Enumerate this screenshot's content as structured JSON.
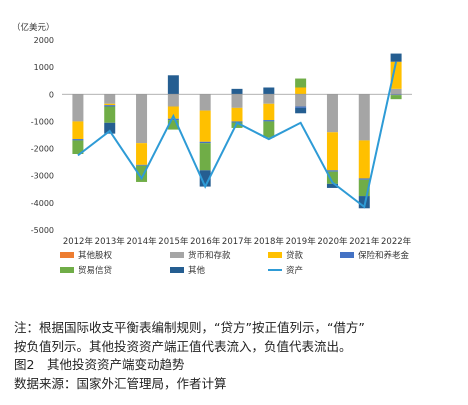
{
  "chart_data": {
    "type": "bar",
    "unit_label": "（亿美元）",
    "categories": [
      "2012年",
      "2013年",
      "2014年",
      "2015年",
      "2016年",
      "2017年",
      "2018年",
      "2019年",
      "2020年",
      "2021年",
      "2022年"
    ],
    "ylim": [
      -5000,
      2000
    ],
    "yticks": [
      2000,
      1000,
      0,
      -1000,
      -2000,
      -3000,
      -4000,
      -5000
    ],
    "stacked": true,
    "series": [
      {
        "name": "其他股权",
        "color": "#ED7D31",
        "values": [
          0,
          0,
          0,
          0,
          0,
          0,
          0,
          0,
          0,
          0,
          0
        ]
      },
      {
        "name": "货币和存款",
        "color": "#A5A5A5",
        "values": [
          -1000,
          -350,
          -1800,
          -450,
          -600,
          -500,
          -350,
          -450,
          -1400,
          -1700,
          200
        ]
      },
      {
        "name": "贷款",
        "color": "#FFC000",
        "values": [
          -650,
          -50,
          -800,
          -450,
          -1150,
          -500,
          -600,
          250,
          -1400,
          -1400,
          1000
        ]
      },
      {
        "name": "保险和养老金",
        "color": "#4472C4",
        "values": [
          -50,
          -50,
          -30,
          -50,
          -50,
          -40,
          -50,
          -50,
          -50,
          -50,
          -30
        ]
      },
      {
        "name": "贸易信贷",
        "color": "#70AD47",
        "values": [
          -500,
          -600,
          -600,
          -350,
          -1000,
          -200,
          -600,
          330,
          -450,
          -600,
          -150
        ]
      },
      {
        "name": "其他",
        "color": "#255E91",
        "values": [
          0,
          -400,
          0,
          700,
          -600,
          200,
          250,
          -200,
          -150,
          -450,
          300
        ]
      }
    ],
    "line": {
      "name": "资产",
      "color": "#2E9BD6",
      "values": [
        -2250,
        -1350,
        -3100,
        -800,
        -3400,
        -1050,
        -1650,
        -1050,
        -3250,
        -4150,
        1200
      ]
    },
    "legend_position": "bottom",
    "grid": false
  },
  "caption": {
    "note_line1": "注：根据国际收支平衡表编制规则，“贷方”按正值列示，“借方”",
    "note_line2": "按负值列示。其他投资资产端正值代表流入，负值代表流出。",
    "figure_title": "图2　其他投资资产端变动趋势",
    "source": "数据来源：国家外汇管理局，作者计算"
  }
}
